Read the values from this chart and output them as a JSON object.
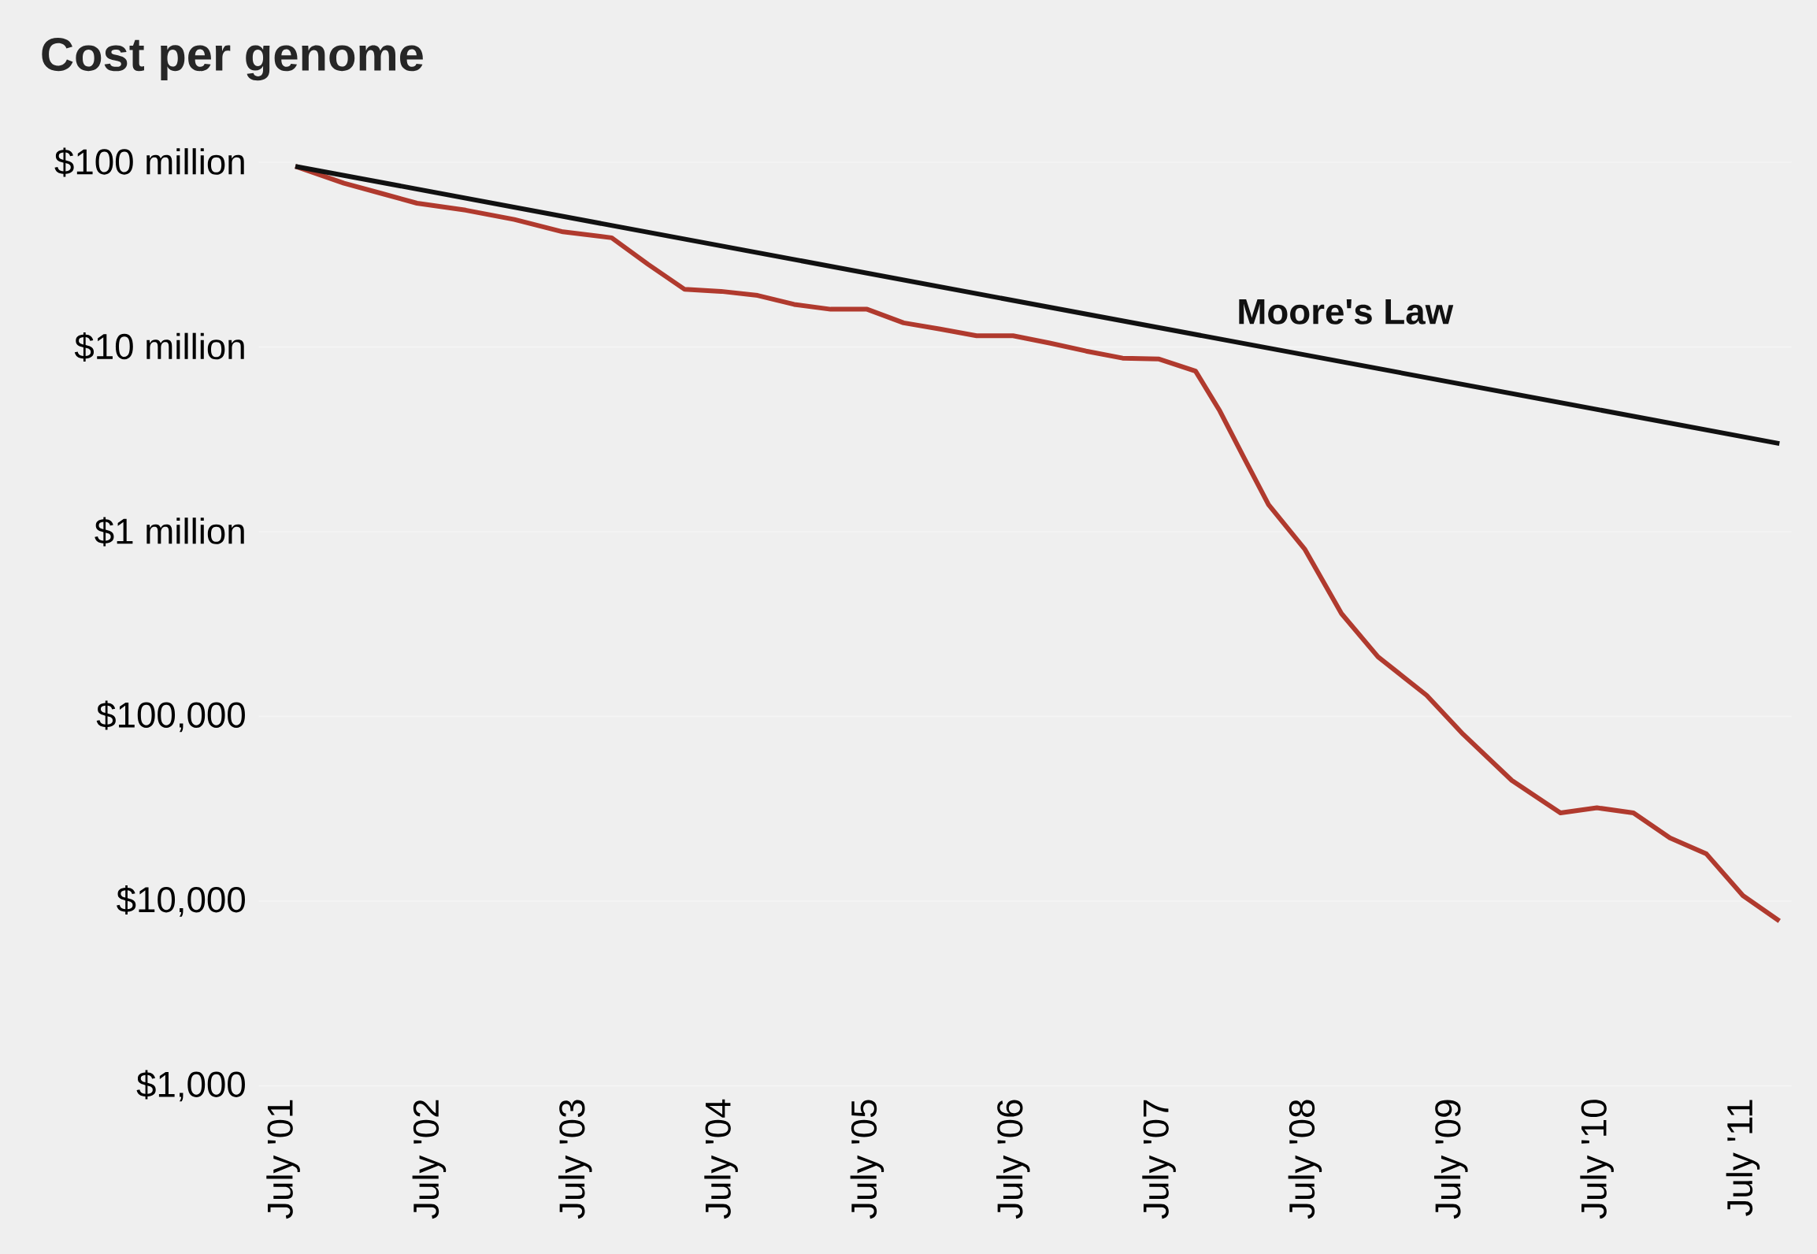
{
  "chart_data": {
    "type": "line",
    "title": "Cost per genome",
    "log": "y",
    "grid": "y",
    "xlim": [
      "2001-05",
      "2011-11"
    ],
    "xticks": [
      {
        "value": "2001-07",
        "label": "July '01"
      },
      {
        "value": "2002-07",
        "label": "July '02"
      },
      {
        "value": "2003-07",
        "label": "July '03"
      },
      {
        "value": "2004-07",
        "label": "July '04"
      },
      {
        "value": "2005-07",
        "label": "July '05"
      },
      {
        "value": "2006-07",
        "label": "July '06"
      },
      {
        "value": "2007-07",
        "label": "July '07"
      },
      {
        "value": "2008-07",
        "label": "July '08"
      },
      {
        "value": "2009-07",
        "label": "July '09"
      },
      {
        "value": "2010-07",
        "label": "July '10"
      },
      {
        "value": "2011-07",
        "label": "July '11"
      }
    ],
    "ylim": [
      1000,
      100000000
    ],
    "yticks": [
      {
        "value": 1000,
        "label": "$1,000"
      },
      {
        "value": 10000,
        "label": "$10,000"
      },
      {
        "value": 100000,
        "label": "$100,000"
      },
      {
        "value": 1000000,
        "label": "$1 million"
      },
      {
        "value": 10000000,
        "label": "$10 million"
      },
      {
        "value": 100000000,
        "label": "$100 million"
      }
    ],
    "series": [
      {
        "color": "#b03a2e",
        "x": [
          "2001-08",
          "2001-12",
          "2002-03",
          "2002-06",
          "2002-10",
          "2003-02",
          "2003-06",
          "2003-10",
          "2004-01",
          "2004-04",
          "2004-07",
          "2004-10",
          "2005-01",
          "2005-04",
          "2005-07",
          "2005-10",
          "2006-01",
          "2006-04",
          "2006-07",
          "2006-10",
          "2007-01",
          "2007-04",
          "2007-07",
          "2007-10",
          "2007-12",
          "2008-02",
          "2008-04",
          "2008-07",
          "2008-10",
          "2009-01",
          "2009-05",
          "2009-08",
          "2009-12",
          "2010-04",
          "2010-07",
          "2010-10",
          "2011-01",
          "2011-04",
          "2011-07",
          "2011-10"
        ],
        "values": [
          95000000,
          77000000,
          68000000,
          60000000,
          55000000,
          49000000,
          42000000,
          39000000,
          28000000,
          20500000,
          20000000,
          19000000,
          17000000,
          16000000,
          16000000,
          13500000,
          12500000,
          11500000,
          11500000,
          10500000,
          9500000,
          8700000,
          8600000,
          7400000,
          4500000,
          2500000,
          1400000,
          800000,
          360000,
          210000,
          130000,
          80000,
          45000,
          30000,
          32000,
          30000,
          22000,
          18000,
          10700,
          7800
        ]
      },
      {
        "name": "Moore's Law",
        "color": "#111111",
        "x": [
          "2001-08",
          "2011-10"
        ],
        "values": [
          95000000,
          3000000
        ]
      }
    ]
  }
}
